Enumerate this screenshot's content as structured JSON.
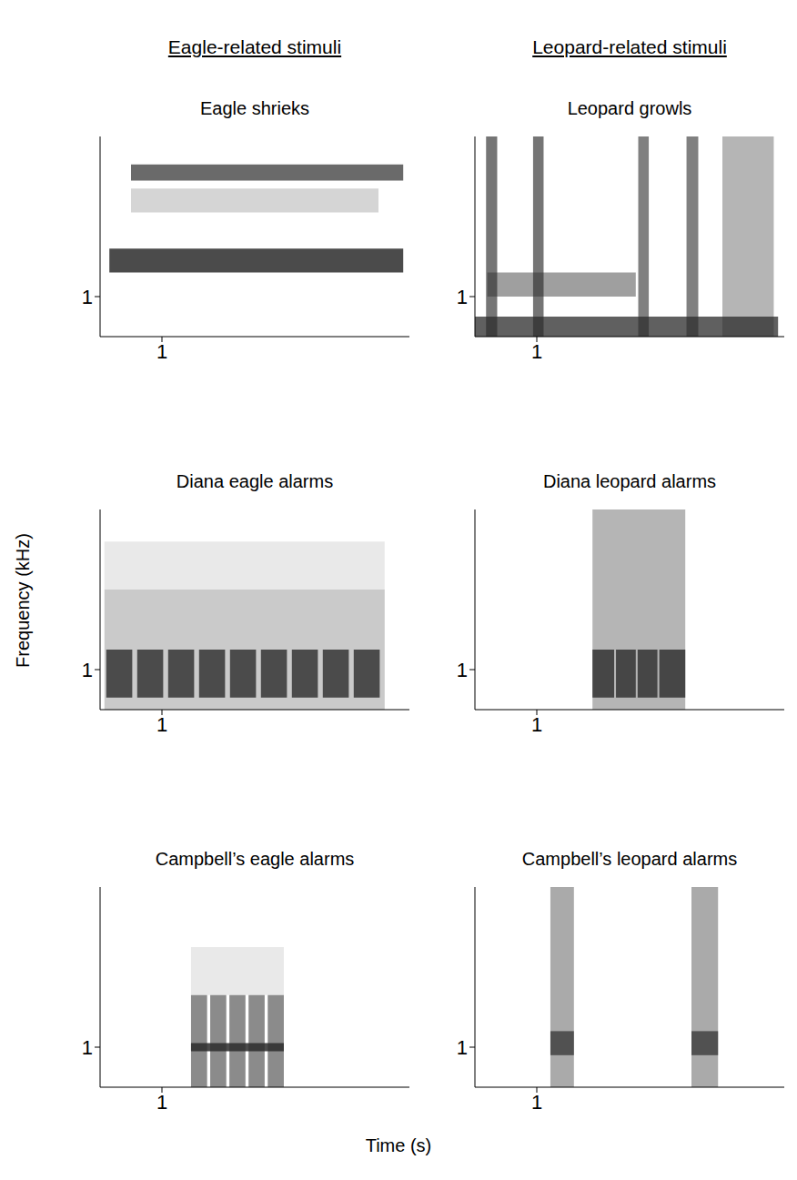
{
  "headers": [
    "Eagle-related stimuli",
    "Leopard-related stimuli"
  ],
  "x_label": "Time (s)",
  "y_label": "Frequency (kHz)",
  "chart_data": [
    {
      "type": "spectrogram",
      "title": "Eagle shrieks",
      "xlim": [
        0,
        5
      ],
      "ylim": [
        0,
        5
      ],
      "xticks": [
        1
      ],
      "yticks": [
        1
      ],
      "color": "#2b2b2b",
      "segments": [
        {
          "t": [
            0.15,
            4.9
          ],
          "f": [
            1.6,
            2.2
          ],
          "level": 0.85
        },
        {
          "t": [
            0.5,
            4.5
          ],
          "f": [
            3.1,
            3.7
          ],
          "level": 0.2
        },
        {
          "t": [
            0.5,
            4.9
          ],
          "f": [
            3.9,
            4.3
          ],
          "level": 0.7
        }
      ]
    },
    {
      "type": "spectrogram",
      "title": "Leopard growls",
      "xlim": [
        0,
        5
      ],
      "ylim": [
        0,
        5
      ],
      "xticks": [
        1
      ],
      "yticks": [
        1
      ],
      "color": "#2b2b2b",
      "segments": [
        {
          "t": [
            0.0,
            4.9
          ],
          "f": [
            0.0,
            0.5
          ],
          "level": 0.75
        },
        {
          "t": [
            0.2,
            2.6
          ],
          "f": [
            1.0,
            1.6
          ],
          "level": 0.45
        },
        {
          "t": [
            0.18,
            0.36
          ],
          "f": [
            0.0,
            5.0
          ],
          "level": 0.65
        },
        {
          "t": [
            0.94,
            1.11
          ],
          "f": [
            0.0,
            5.0
          ],
          "level": 0.65
        },
        {
          "t": [
            2.64,
            2.81
          ],
          "f": [
            0.0,
            5.0
          ],
          "level": 0.6
        },
        {
          "t": [
            3.42,
            3.61
          ],
          "f": [
            0.0,
            5.0
          ],
          "level": 0.6
        },
        {
          "t": [
            4.0,
            4.83
          ],
          "f": [
            0.0,
            5.0
          ],
          "level": 0.35
        }
      ]
    },
    {
      "type": "spectrogram",
      "title": "Diana eagle alarms",
      "xlim": [
        0,
        5
      ],
      "ylim": [
        0,
        5
      ],
      "xticks": [
        1
      ],
      "yticks": [
        1
      ],
      "color": "#2b2b2b",
      "segments": [
        {
          "t": [
            0.07,
            4.6
          ],
          "f": [
            0.0,
            3.0
          ],
          "level": 0.25
        },
        {
          "t": [
            0.07,
            4.6
          ],
          "f": [
            3.0,
            4.2
          ],
          "level": 0.1
        },
        {
          "t": [
            0.1,
            0.52
          ],
          "f": [
            0.3,
            1.5
          ],
          "level": 0.8
        },
        {
          "t": [
            0.6,
            1.02
          ],
          "f": [
            0.3,
            1.5
          ],
          "level": 0.8
        },
        {
          "t": [
            1.1,
            1.52
          ],
          "f": [
            0.3,
            1.5
          ],
          "level": 0.8
        },
        {
          "t": [
            1.6,
            2.02
          ],
          "f": [
            0.3,
            1.5
          ],
          "level": 0.8
        },
        {
          "t": [
            2.1,
            2.52
          ],
          "f": [
            0.3,
            1.5
          ],
          "level": 0.8
        },
        {
          "t": [
            2.6,
            3.02
          ],
          "f": [
            0.3,
            1.5
          ],
          "level": 0.8
        },
        {
          "t": [
            3.1,
            3.52
          ],
          "f": [
            0.3,
            1.5
          ],
          "level": 0.8
        },
        {
          "t": [
            3.6,
            4.02
          ],
          "f": [
            0.3,
            1.5
          ],
          "level": 0.8
        },
        {
          "t": [
            4.1,
            4.52
          ],
          "f": [
            0.3,
            1.5
          ],
          "level": 0.8
        }
      ]
    },
    {
      "type": "spectrogram",
      "title": "Diana leopard alarms",
      "xlim": [
        0,
        5
      ],
      "ylim": [
        0,
        5
      ],
      "xticks": [
        1
      ],
      "yticks": [
        1
      ],
      "color": "#2b2b2b",
      "segments": [
        {
          "t": [
            1.9,
            3.4
          ],
          "f": [
            0.0,
            5.0
          ],
          "level": 0.35
        },
        {
          "t": [
            1.9,
            2.25
          ],
          "f": [
            0.3,
            1.5
          ],
          "level": 0.8
        },
        {
          "t": [
            2.28,
            2.6
          ],
          "f": [
            0.3,
            1.5
          ],
          "level": 0.8
        },
        {
          "t": [
            2.63,
            2.95
          ],
          "f": [
            0.3,
            1.5
          ],
          "level": 0.8
        },
        {
          "t": [
            2.98,
            3.4
          ],
          "f": [
            0.3,
            1.5
          ],
          "level": 0.8
        }
      ]
    },
    {
      "type": "spectrogram",
      "title": "Campbell’s eagle alarms",
      "xlim": [
        0,
        5
      ],
      "ylim": [
        0,
        5
      ],
      "xticks": [
        1
      ],
      "yticks": [
        1
      ],
      "color": "#2b2b2b",
      "segments": [
        {
          "t": [
            1.47,
            2.97
          ],
          "f": [
            2.3,
            3.5
          ],
          "level": 0.1
        },
        {
          "t": [
            1.47,
            1.73
          ],
          "f": [
            0.0,
            2.3
          ],
          "level": 0.55
        },
        {
          "t": [
            1.78,
            2.04
          ],
          "f": [
            0.0,
            2.3
          ],
          "level": 0.55
        },
        {
          "t": [
            2.09,
            2.35
          ],
          "f": [
            0.0,
            2.3
          ],
          "level": 0.55
        },
        {
          "t": [
            2.4,
            2.66
          ],
          "f": [
            0.0,
            2.3
          ],
          "level": 0.55
        },
        {
          "t": [
            2.71,
            2.97
          ],
          "f": [
            0.0,
            2.3
          ],
          "level": 0.55
        },
        {
          "t": [
            1.47,
            2.97
          ],
          "f": [
            0.9,
            1.1
          ],
          "level": 0.85
        }
      ]
    },
    {
      "type": "spectrogram",
      "title": "Campbell’s leopard alarms",
      "xlim": [
        0,
        5
      ],
      "ylim": [
        0,
        5
      ],
      "xticks": [
        1
      ],
      "yticks": [
        1
      ],
      "color": "#2b2b2b",
      "segments": [
        {
          "t": [
            1.22,
            1.6
          ],
          "f": [
            0.0,
            5.0
          ],
          "level": 0.4
        },
        {
          "t": [
            1.22,
            1.6
          ],
          "f": [
            0.8,
            1.4
          ],
          "level": 0.7
        },
        {
          "t": [
            3.5,
            3.93
          ],
          "f": [
            0.0,
            5.0
          ],
          "level": 0.4
        },
        {
          "t": [
            3.5,
            3.93
          ],
          "f": [
            0.8,
            1.4
          ],
          "level": 0.7
        }
      ]
    }
  ]
}
